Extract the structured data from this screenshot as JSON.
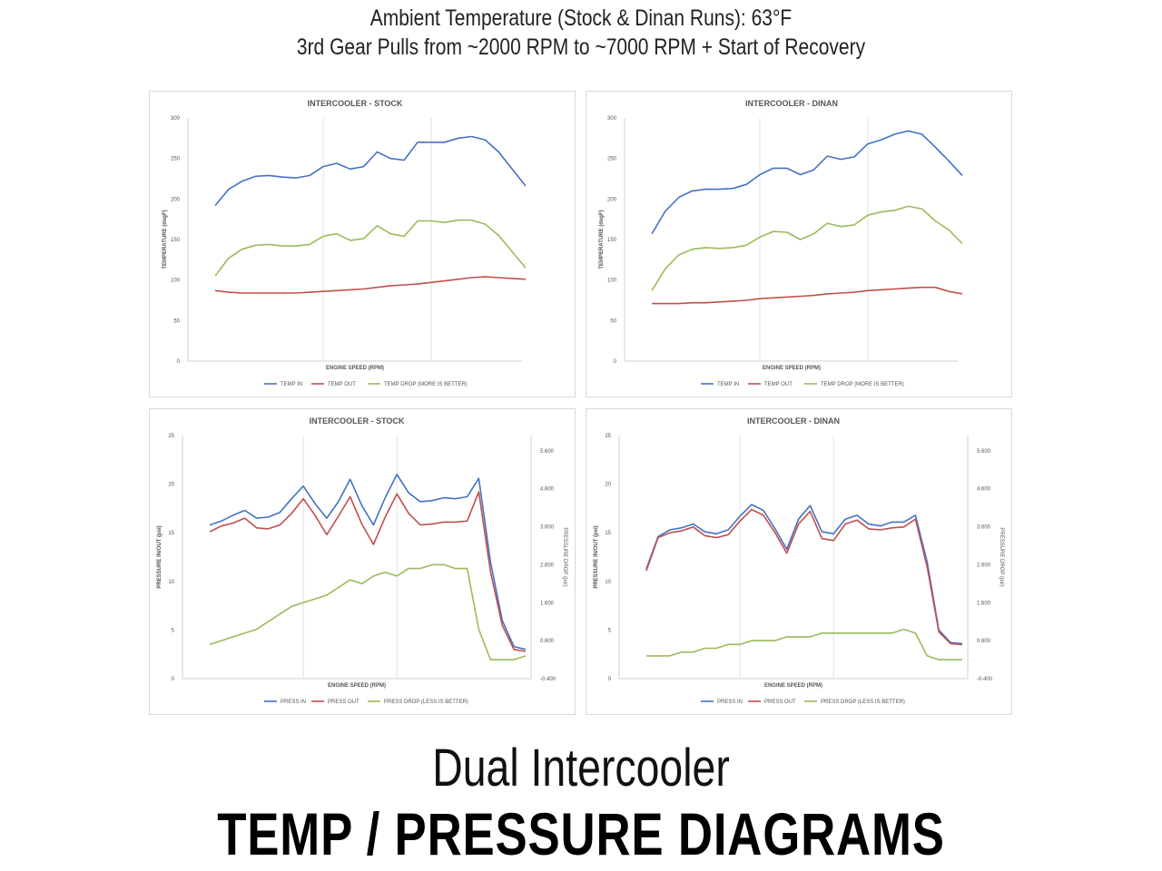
{
  "header": {
    "line1": "Ambient Temperature (Stock & Dinan Runs): 63°F",
    "line2": "3rd Gear Pulls from ~2000 RPM to ~7000 RPM + Start of Recovery"
  },
  "footer": {
    "line1": "Dual Intercooler",
    "line2": "TEMP / PRESSURE DIAGRAMS"
  },
  "chart_data": [
    {
      "type": "line",
      "title": "INTERCOOLER - STOCK",
      "xlabel": "ENGINE SPEED (RPM)",
      "ylabel": "TEMPERATURE (degF)",
      "ylim": [
        0,
        300
      ],
      "yticks": [
        "0",
        "50",
        "100",
        "150",
        "200",
        "250",
        "300"
      ],
      "xlim": [
        0,
        23
      ],
      "xgrid": [
        8,
        16
      ],
      "grid": "vertical",
      "legend_position": "bottom",
      "series": [
        {
          "name": "TEMP IN",
          "color": "#4472c4",
          "axis": "left",
          "x": [
            0,
            1,
            2,
            3,
            4,
            5,
            6,
            7,
            8,
            9,
            10,
            11,
            12,
            13,
            14,
            15,
            16,
            17,
            18,
            19,
            20,
            21,
            22,
            23
          ],
          "values": [
            192,
            212,
            222,
            228,
            229,
            227,
            226,
            229,
            240,
            244,
            237,
            240,
            258,
            250,
            248,
            270,
            270,
            270,
            275,
            277,
            273,
            258,
            237,
            216
          ]
        },
        {
          "name": "TEMP OUT",
          "color": "#c0504d",
          "axis": "left",
          "x": [
            0,
            1,
            2,
            3,
            4,
            5,
            6,
            7,
            8,
            9,
            10,
            11,
            12,
            13,
            14,
            15,
            16,
            17,
            18,
            19,
            20,
            21,
            22,
            23
          ],
          "values": [
            87,
            85,
            84,
            84,
            84,
            84,
            84,
            85,
            86,
            87,
            88,
            89,
            91,
            93,
            94,
            95,
            97,
            99,
            101,
            103,
            104,
            103,
            102,
            101
          ]
        },
        {
          "name": "TEMP DROP (MORE IS BETTER)",
          "color": "#9bbb59",
          "axis": "left",
          "x": [
            0,
            1,
            2,
            3,
            4,
            5,
            6,
            7,
            8,
            9,
            10,
            11,
            12,
            13,
            14,
            15,
            16,
            17,
            18,
            19,
            20,
            21,
            22,
            23
          ],
          "values": [
            105,
            127,
            138,
            143,
            144,
            142,
            142,
            144,
            154,
            157,
            149,
            151,
            167,
            157,
            154,
            173,
            173,
            171,
            174,
            174,
            169,
            155,
            135,
            115
          ]
        }
      ]
    },
    {
      "type": "line",
      "title": "INTERCOOLER - DINAN",
      "xlabel": "ENGINE SPEED (RPM)",
      "ylabel": "TEMPERATURE (degF)",
      "ylim": [
        0,
        300
      ],
      "yticks": [
        "0",
        "50",
        "100",
        "150",
        "200",
        "250",
        "300"
      ],
      "xlim": [
        0,
        23
      ],
      "xgrid": [
        8,
        16
      ],
      "grid": "vertical",
      "legend_position": "bottom",
      "series": [
        {
          "name": "TEMP IN",
          "color": "#4472c4",
          "axis": "left",
          "x": [
            0,
            1,
            2,
            3,
            4,
            5,
            6,
            7,
            8,
            9,
            10,
            11,
            12,
            13,
            14,
            15,
            16,
            17,
            18,
            19,
            20,
            21,
            22,
            23
          ],
          "values": [
            157,
            185,
            202,
            210,
            212,
            212,
            213,
            218,
            230,
            238,
            238,
            230,
            236,
            253,
            249,
            252,
            268,
            273,
            280,
            284,
            280,
            264,
            247,
            229
          ]
        },
        {
          "name": "TEMP OUT",
          "color": "#c0504d",
          "axis": "left",
          "x": [
            0,
            1,
            2,
            3,
            4,
            5,
            6,
            7,
            8,
            9,
            10,
            11,
            12,
            13,
            14,
            15,
            16,
            17,
            18,
            19,
            20,
            21,
            22,
            23
          ],
          "values": [
            71,
            71,
            71,
            72,
            72,
            73,
            74,
            75,
            77,
            78,
            79,
            80,
            81,
            83,
            84,
            85,
            87,
            88,
            89,
            90,
            91,
            91,
            86,
            83
          ]
        },
        {
          "name": "TEMP DROP (MORE IS BETTER)",
          "color": "#9bbb59",
          "axis": "left",
          "x": [
            0,
            1,
            2,
            3,
            4,
            5,
            6,
            7,
            8,
            9,
            10,
            11,
            12,
            13,
            14,
            15,
            16,
            17,
            18,
            19,
            20,
            21,
            22,
            23
          ],
          "values": [
            87,
            114,
            131,
            138,
            140,
            139,
            140,
            143,
            153,
            160,
            159,
            150,
            157,
            170,
            166,
            168,
            180,
            184,
            186,
            191,
            188,
            173,
            162,
            145
          ]
        }
      ]
    },
    {
      "type": "line",
      "title": "INTERCOOLER - STOCK",
      "xlabel": "ENGINE SPEED (RPM)",
      "ylabel": "PRESSURE IN/OUT (psi)",
      "y2label": "PRESSURE DROP (psi)",
      "ylim": [
        0,
        25
      ],
      "yticks": [
        "0",
        "5",
        "10",
        "15",
        "20",
        "25"
      ],
      "y2lim": [
        -0.4,
        6.0
      ],
      "y2ticks": [
        "-0.400",
        "0.600",
        "1.600",
        "2.600",
        "3.600",
        "4.600",
        "5.600"
      ],
      "xlim": [
        0,
        27
      ],
      "xgrid": [
        8,
        16
      ],
      "grid": "vertical",
      "legend_position": "bottom",
      "series": [
        {
          "name": "PRESS IN",
          "color": "#4472c4",
          "axis": "left",
          "x": [
            0,
            1,
            2,
            3,
            4,
            5,
            6,
            7,
            8,
            9,
            10,
            11,
            12,
            13,
            14,
            15,
            16,
            17,
            18,
            19,
            20,
            21,
            22,
            23,
            24,
            25,
            26,
            27
          ],
          "values": [
            15.8,
            16.2,
            16.8,
            17.3,
            16.5,
            16.6,
            17.1,
            18.5,
            19.8,
            18.0,
            16.5,
            18.2,
            20.5,
            17.8,
            15.8,
            18.6,
            21.0,
            19.1,
            18.2,
            18.3,
            18.6,
            18.5,
            18.7,
            20.6,
            12.0,
            6.0,
            3.3,
            3.0
          ]
        },
        {
          "name": "PRESS OUT",
          "color": "#c0504d",
          "axis": "left",
          "x": [
            0,
            1,
            2,
            3,
            4,
            5,
            6,
            7,
            8,
            9,
            10,
            11,
            12,
            13,
            14,
            15,
            16,
            17,
            18,
            19,
            20,
            21,
            22,
            23,
            24,
            25,
            26,
            27
          ],
          "values": [
            15.1,
            15.7,
            16.0,
            16.5,
            15.5,
            15.4,
            15.8,
            17.0,
            18.5,
            16.8,
            14.8,
            16.7,
            18.7,
            15.9,
            13.8,
            16.6,
            19.0,
            17.0,
            15.8,
            15.9,
            16.1,
            16.1,
            16.2,
            19.2,
            11.0,
            5.5,
            3.0,
            2.8
          ]
        },
        {
          "name": "PRESS DROP (LESS IS BETTER)",
          "color": "#9bbb59",
          "axis": "right",
          "x": [
            0,
            1,
            2,
            3,
            4,
            5,
            6,
            7,
            8,
            9,
            10,
            11,
            12,
            13,
            14,
            15,
            16,
            17,
            18,
            19,
            20,
            21,
            22,
            23,
            24,
            25,
            26,
            27
          ],
          "values": [
            0.5,
            0.6,
            0.7,
            0.8,
            0.9,
            1.1,
            1.3,
            1.5,
            1.6,
            1.7,
            1.8,
            2.0,
            2.2,
            2.1,
            2.3,
            2.4,
            2.3,
            2.5,
            2.5,
            2.6,
            2.6,
            2.5,
            2.5,
            0.9,
            0.1,
            0.1,
            0.1,
            0.2
          ]
        }
      ]
    },
    {
      "type": "line",
      "title": "INTERCOOLER - DINAN",
      "xlabel": "ENGINE SPEED (RPM)",
      "ylabel": "PRESSURE IN/OUT (psi)",
      "y2label": "PRESSURE DROP (psi)",
      "ylim": [
        0,
        25
      ],
      "yticks": [
        "0",
        "5",
        "10",
        "15",
        "20",
        "25"
      ],
      "y2lim": [
        -0.4,
        6.0
      ],
      "y2ticks": [
        "-0.400",
        "0.600",
        "1.600",
        "2.600",
        "3.600",
        "4.600",
        "5.600"
      ],
      "xlim": [
        0,
        27
      ],
      "xgrid": [
        8,
        16
      ],
      "grid": "vertical",
      "legend_position": "bottom",
      "series": [
        {
          "name": "PRESS IN",
          "color": "#4472c4",
          "axis": "left",
          "x": [
            0,
            1,
            2,
            3,
            4,
            5,
            6,
            7,
            8,
            9,
            10,
            11,
            12,
            13,
            14,
            15,
            16,
            17,
            18,
            19,
            20,
            21,
            22,
            23,
            24,
            25,
            26,
            27
          ],
          "values": [
            11.3,
            14.6,
            15.3,
            15.5,
            15.9,
            15.1,
            14.9,
            15.3,
            16.7,
            17.9,
            17.3,
            15.4,
            13.3,
            16.4,
            17.8,
            15.1,
            14.9,
            16.4,
            16.8,
            15.9,
            15.7,
            16.1,
            16.1,
            16.8,
            12.0,
            5.0,
            3.7,
            3.6
          ]
        },
        {
          "name": "PRESS OUT",
          "color": "#c0504d",
          "axis": "left",
          "x": [
            0,
            1,
            2,
            3,
            4,
            5,
            6,
            7,
            8,
            9,
            10,
            11,
            12,
            13,
            14,
            15,
            16,
            17,
            18,
            19,
            20,
            21,
            22,
            23,
            24,
            25,
            26,
            27
          ],
          "values": [
            11.1,
            14.5,
            15.0,
            15.2,
            15.6,
            14.7,
            14.5,
            14.8,
            16.2,
            17.4,
            16.8,
            15.0,
            12.9,
            15.9,
            17.2,
            14.4,
            14.2,
            15.9,
            16.3,
            15.4,
            15.3,
            15.5,
            15.6,
            16.4,
            11.5,
            4.8,
            3.6,
            3.5
          ]
        },
        {
          "name": "PRESS DROP (LESS IS BETTER)",
          "color": "#9bbb59",
          "axis": "right",
          "x": [
            0,
            1,
            2,
            3,
            4,
            5,
            6,
            7,
            8,
            9,
            10,
            11,
            12,
            13,
            14,
            15,
            16,
            17,
            18,
            19,
            20,
            21,
            22,
            23,
            24,
            25,
            26,
            27
          ],
          "values": [
            0.2,
            0.2,
            0.2,
            0.3,
            0.3,
            0.4,
            0.4,
            0.5,
            0.5,
            0.6,
            0.6,
            0.6,
            0.7,
            0.7,
            0.7,
            0.8,
            0.8,
            0.8,
            0.8,
            0.8,
            0.8,
            0.8,
            0.9,
            0.8,
            0.2,
            0.1,
            0.1,
            0.1
          ]
        }
      ]
    }
  ]
}
